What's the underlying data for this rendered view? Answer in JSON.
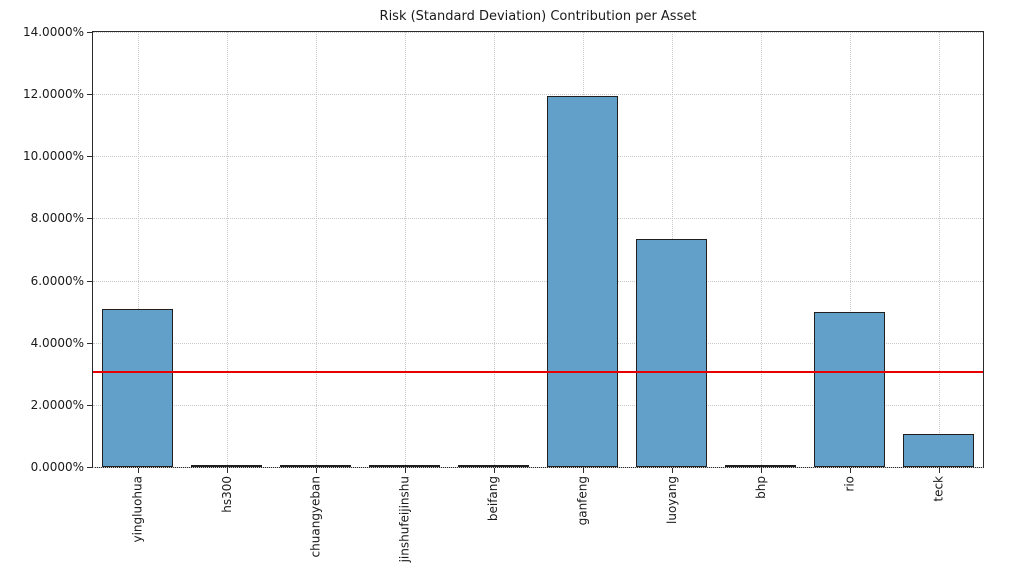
{
  "chart_data": {
    "type": "bar",
    "title": "Risk (Standard Deviation) Contribution per Asset",
    "categories": [
      "yingluohua",
      "hs300",
      "chuangyeban",
      "jinshufeijinshu",
      "beifang",
      "ganfeng",
      "luoyang",
      "bhp",
      "rio",
      "teck"
    ],
    "values": [
      5.1,
      0.02,
      0.02,
      0.03,
      0.03,
      11.95,
      7.35,
      0.02,
      5.0,
      1.05
    ],
    "unit": "%",
    "ylim": [
      0,
      14
    ],
    "yticks": [
      0,
      2,
      4,
      6,
      8,
      10,
      12,
      14
    ],
    "ytick_labels": [
      "0.0000%",
      "2.0000%",
      "4.0000%",
      "6.0000%",
      "8.0000%",
      "10.0000%",
      "12.0000%",
      "14.0000%"
    ],
    "mean_line": {
      "value": 3.05,
      "color": "#e60000"
    },
    "bar_color": "#62a0ca",
    "bar_edge_color": "#1f1f1f",
    "grid": true,
    "grid_style": "dotted",
    "legend_position": "none",
    "xlabel": "",
    "ylabel": ""
  }
}
